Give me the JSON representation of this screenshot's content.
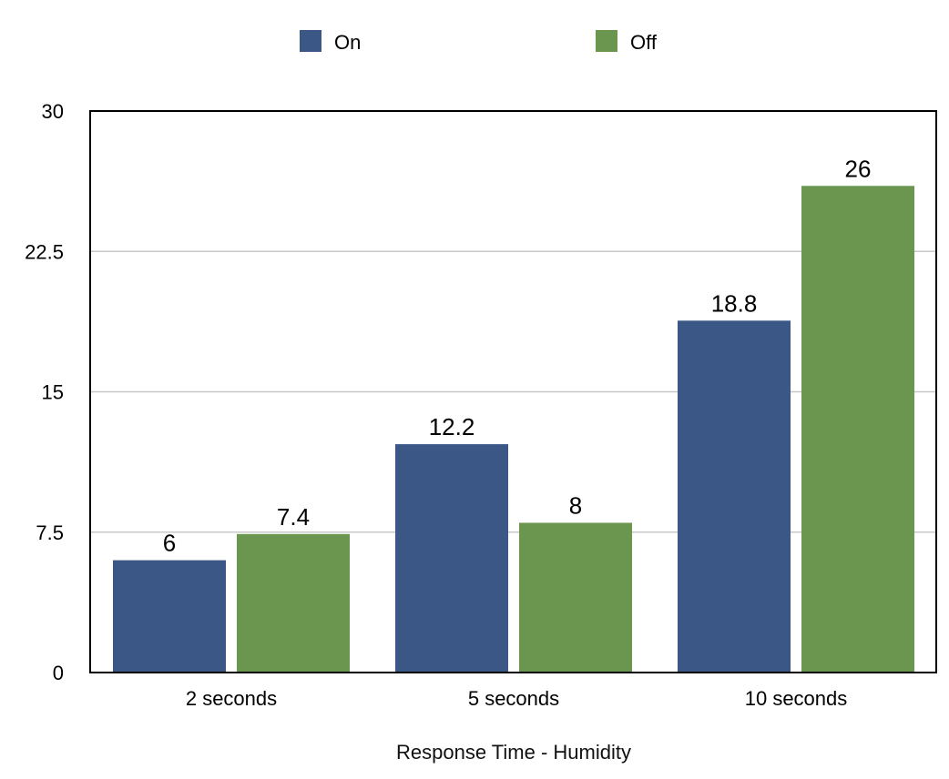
{
  "chart_data": {
    "type": "bar",
    "title": "",
    "xlabel": "Response Time - Humidity",
    "ylabel": "",
    "categories": [
      "2 seconds",
      "5 seconds",
      "10 seconds"
    ],
    "series": [
      {
        "name": "On",
        "color": "#3a5786",
        "values": [
          6,
          12.2,
          18.8
        ]
      },
      {
        "name": "Off",
        "color": "#6a9650",
        "values": [
          7.4,
          8,
          26
        ]
      }
    ],
    "ylim": [
      0,
      30
    ],
    "yticks": [
      0,
      7.5,
      15,
      22.5,
      30
    ],
    "ytick_labels": [
      "0",
      "7.5",
      "15",
      "22.5",
      "30"
    ],
    "data_labels": [
      [
        "6",
        "12.2",
        "18.8"
      ],
      [
        "7.4",
        "8",
        "26"
      ]
    ],
    "grid": true,
    "legend_position": "top"
  }
}
